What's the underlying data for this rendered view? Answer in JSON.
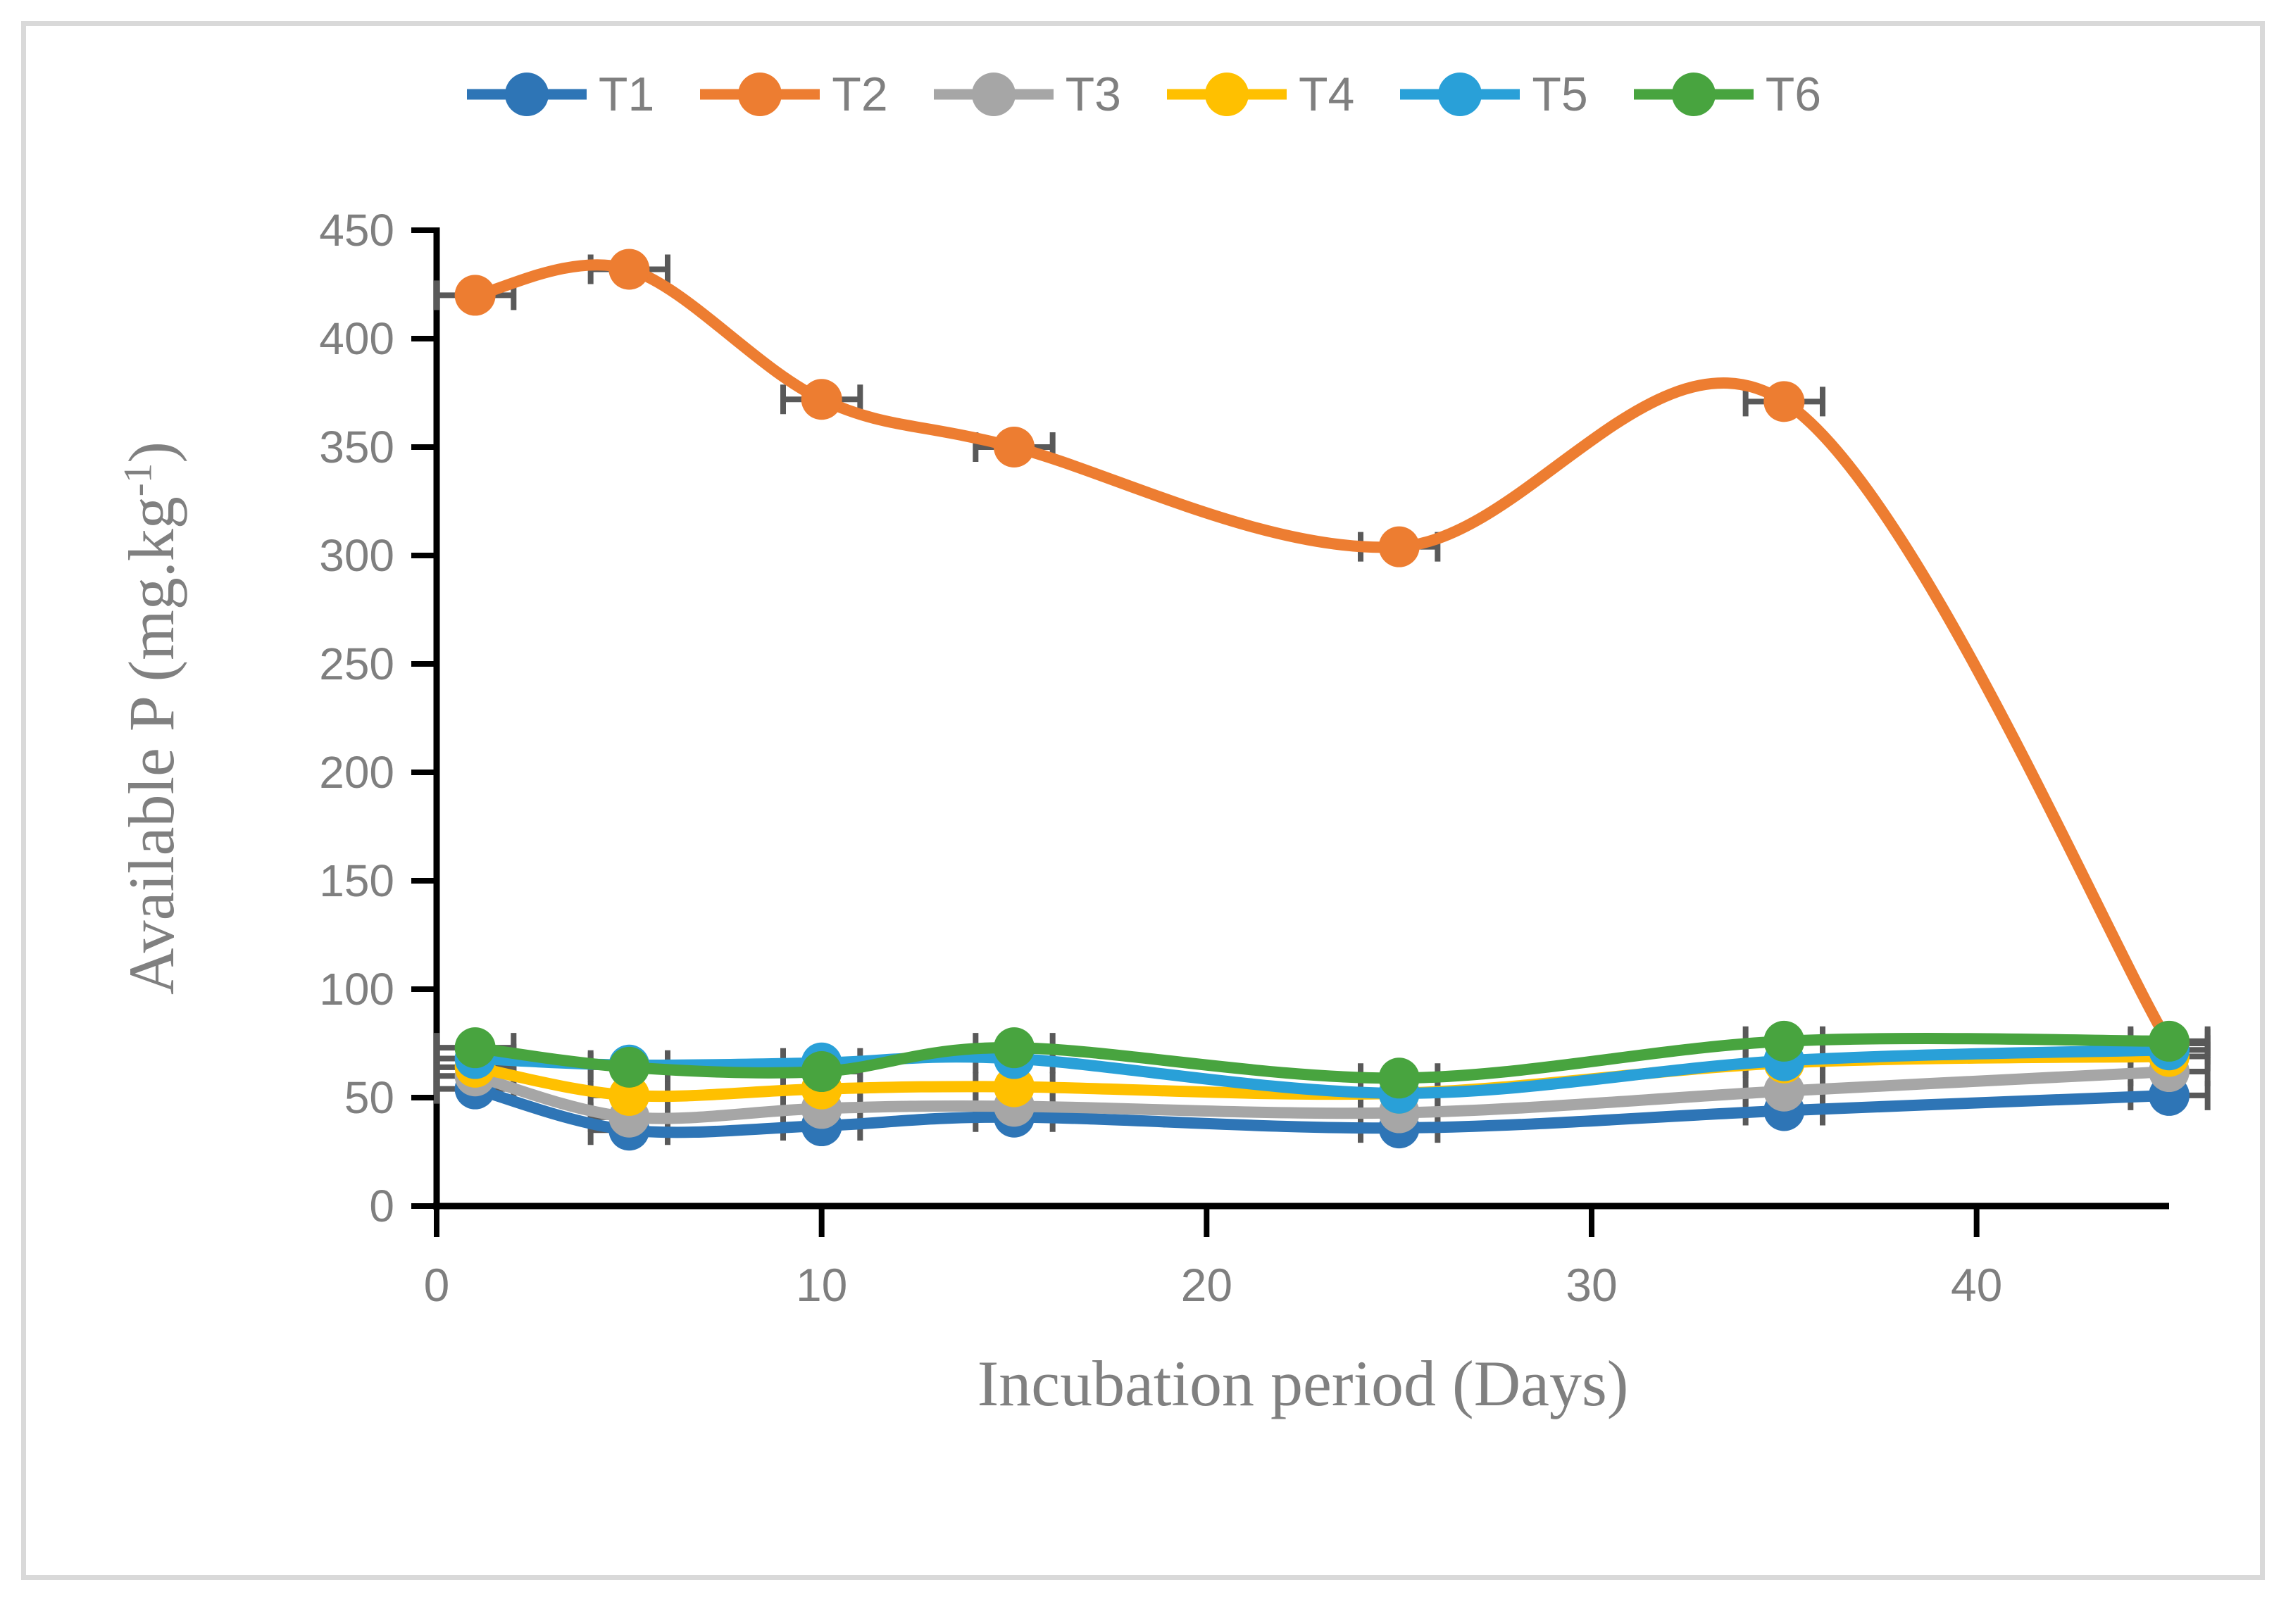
{
  "figure": {
    "border_color": "#D9D9D9",
    "background": "#FFFFFF"
  },
  "chart_data": {
    "type": "line",
    "title": "",
    "xlabel": "Incubation period (Days)",
    "ylabel_prefix": "Available P (mg.kg",
    "ylabel_superscript": "-1",
    "ylabel_suffix": ")",
    "x": [
      1,
      5,
      10,
      15,
      25,
      35,
      45
    ],
    "xlim": [
      0,
      45
    ],
    "ylim": [
      0,
      450
    ],
    "xticks": [
      0,
      10,
      20,
      30,
      40
    ],
    "yticks": [
      0,
      50,
      100,
      150,
      200,
      250,
      300,
      350,
      400,
      450
    ],
    "grid": false,
    "smooth_lines": true,
    "marker": "circle",
    "legend_position": "top",
    "error_bars": {
      "direction": "x",
      "plus_minus": 1,
      "color": "#595959"
    },
    "axis_color": "#000000",
    "tick_label_color": "#7F7F7F",
    "axis_title_color": "#808080",
    "series": [
      {
        "name": "T1",
        "color": "#2E75B6",
        "values": [
          54,
          35,
          37,
          41,
          36,
          44,
          51
        ]
      },
      {
        "name": "T2",
        "color": "#ED7D31",
        "values": [
          420,
          432,
          372,
          350,
          304,
          371,
          75
        ]
      },
      {
        "name": "T3",
        "color": "#A6A6A6",
        "values": [
          60,
          41,
          45,
          46,
          43,
          53,
          62
        ]
      },
      {
        "name": "T4",
        "color": "#FFC000",
        "values": [
          64,
          51,
          54,
          55,
          52,
          66,
          69
        ]
      },
      {
        "name": "T5",
        "color": "#29A0D8",
        "values": [
          68,
          65,
          66,
          68,
          52,
          67,
          72
        ]
      },
      {
        "name": "T6",
        "color": "#48A43F",
        "values": [
          73,
          64,
          62,
          73,
          59,
          76,
          76
        ]
      }
    ]
  }
}
